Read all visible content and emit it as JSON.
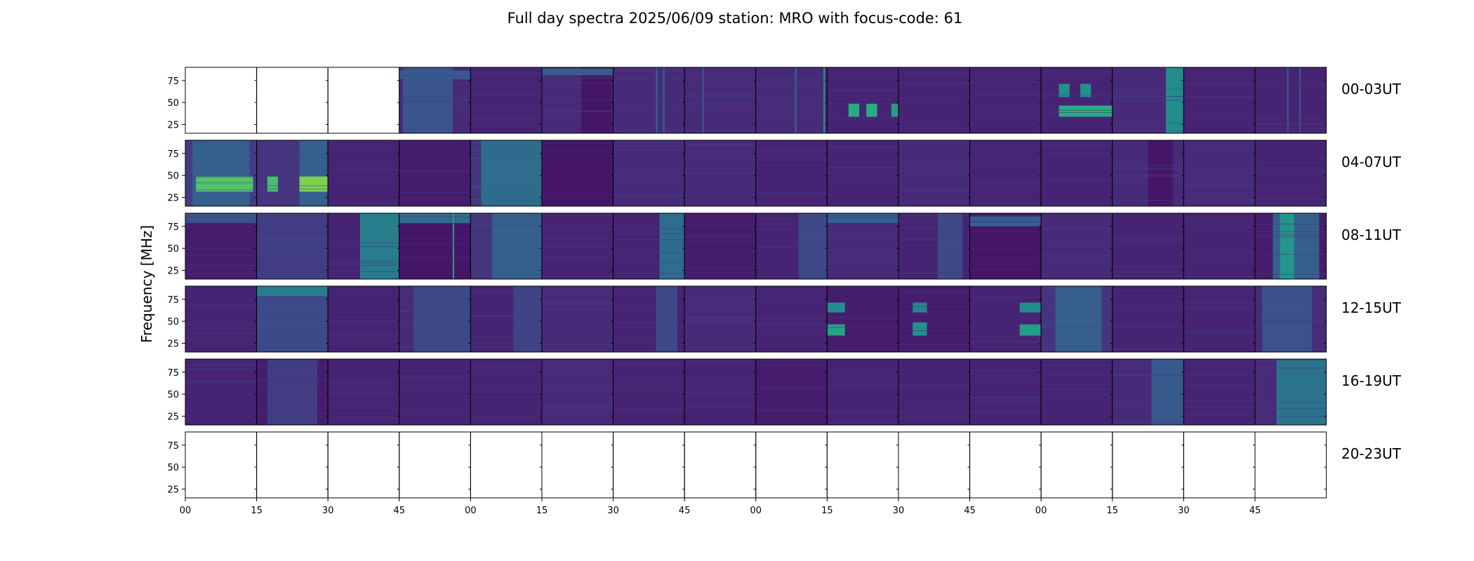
{
  "chart_data": {
    "type": "heatmap",
    "title": "Full day spectra 2025/06/09 station: MRO with focus-code: 61",
    "ylabel": "Frequency [MHz]",
    "y_ticks": [
      "25",
      "50",
      "75"
    ],
    "x_ticks": [
      "00",
      "15",
      "30",
      "45",
      "00",
      "15",
      "30",
      "45",
      "00",
      "15",
      "30",
      "45",
      "00",
      "15",
      "30",
      "45"
    ],
    "colormap": "viridis",
    "colormap_colors": [
      "#440154",
      "#472d7b",
      "#3b528b",
      "#2c728e",
      "#21918c",
      "#28ae80",
      "#5ec962",
      "#addc30",
      "#fde725"
    ],
    "rows": [
      {
        "label": "00-03UT",
        "panels": [
          {
            "empty": true
          },
          {
            "empty": true
          },
          {
            "empty": true
          },
          {
            "base": 0.12,
            "bands": [
              {
                "from": 0.82,
                "to": 0.95,
                "level": 0.28
              }
            ],
            "blocks": [
              {
                "x0": 0.05,
                "x1": 0.75,
                "level": 0.26
              }
            ]
          },
          {
            "base": 0.1
          },
          {
            "base": 0.12,
            "blocks": [
              {
                "x0": 0.55,
                "x1": 0.98,
                "level": 0.06
              }
            ],
            "bands": [
              {
                "from": 0.88,
                "to": 0.98,
                "level": 0.3
              }
            ]
          },
          {
            "base": 0.12,
            "lines": [
              {
                "x": 0.6,
                "level": 0.35
              },
              {
                "x": 0.7,
                "level": 0.35
              }
            ]
          },
          {
            "base": 0.12,
            "lines": [
              {
                "x": 0.25,
                "level": 0.3
              }
            ]
          },
          {
            "base": 0.12,
            "lines": [
              {
                "x": 0.55,
                "level": 0.35
              },
              {
                "x": 0.95,
                "level": 0.55
              }
            ]
          },
          {
            "base": 0.1,
            "spots": [
              {
                "x0": 0.3,
                "x1": 0.45,
                "y0": 0.25,
                "y1": 0.45,
                "level": 0.62
              },
              {
                "x0": 0.55,
                "x1": 0.7,
                "y0": 0.25,
                "y1": 0.45,
                "level": 0.62
              },
              {
                "x0": 0.9,
                "x1": 1.0,
                "y0": 0.25,
                "y1": 0.45,
                "level": 0.55
              }
            ]
          },
          {
            "base": 0.1
          },
          {
            "base": 0.1
          },
          {
            "base": 0.1,
            "spots": [
              {
                "x0": 0.25,
                "x1": 1.0,
                "y0": 0.25,
                "y1": 0.42,
                "level": 0.62
              },
              {
                "x0": 0.25,
                "x1": 0.4,
                "y0": 0.55,
                "y1": 0.75,
                "level": 0.5
              },
              {
                "x0": 0.55,
                "x1": 0.7,
                "y0": 0.55,
                "y1": 0.75,
                "level": 0.5
              }
            ]
          },
          {
            "base": 0.12,
            "blocks": [
              {
                "x0": 0.75,
                "x1": 1.0,
                "level": 0.48
              }
            ]
          },
          {
            "base": 0.1
          },
          {
            "base": 0.1,
            "lines": [
              {
                "x": 0.45,
                "level": 0.28
              },
              {
                "x": 0.62,
                "level": 0.28
              }
            ]
          }
        ]
      },
      {
        "label": "04-07UT",
        "panels": [
          {
            "base": 0.18,
            "blocks": [
              {
                "x0": 0.1,
                "x1": 0.9,
                "level": 0.3
              }
            ],
            "spots": [
              {
                "x0": 0.15,
                "x1": 0.95,
                "y0": 0.22,
                "y1": 0.45,
                "level": 0.72
              }
            ]
          },
          {
            "base": 0.15,
            "blocks": [
              {
                "x0": 0.6,
                "x1": 1.0,
                "level": 0.3
              }
            ],
            "spots": [
              {
                "x0": 0.15,
                "x1": 0.3,
                "y0": 0.22,
                "y1": 0.45,
                "level": 0.7
              },
              {
                "x0": 0.6,
                "x1": 1.0,
                "y0": 0.22,
                "y1": 0.45,
                "level": 0.8
              }
            ]
          },
          {
            "base": 0.1
          },
          {
            "base": 0.08
          },
          {
            "base": 0.25,
            "blocks": [
              {
                "x0": 0.0,
                "x1": 0.15,
                "level": 0.15
              },
              {
                "x0": 0.15,
                "x1": 1.0,
                "level": 0.35
              }
            ]
          },
          {
            "base": 0.06
          },
          {
            "base": 0.12
          },
          {
            "base": 0.12
          },
          {
            "base": 0.1
          },
          {
            "base": 0.1
          },
          {
            "base": 0.12
          },
          {
            "base": 0.1
          },
          {
            "base": 0.1
          },
          {
            "base": 0.12,
            "blocks": [
              {
                "x0": 0.5,
                "x1": 0.85,
                "level": 0.06
              }
            ]
          },
          {
            "base": 0.12
          },
          {
            "base": 0.1
          }
        ]
      },
      {
        "label": "08-11UT",
        "panels": [
          {
            "base": 0.08,
            "bands": [
              {
                "from": 0.85,
                "to": 1.0,
                "level": 0.25
              }
            ]
          },
          {
            "base": 0.18
          },
          {
            "base": 0.1,
            "blocks": [
              {
                "x0": 0.45,
                "x1": 1.0,
                "level": 0.42
              }
            ]
          },
          {
            "base": 0.06,
            "bands": [
              {
                "from": 0.85,
                "to": 1.0,
                "level": 0.35
              }
            ],
            "lines": [
              {
                "x": 0.75,
                "level": 0.55
              }
            ]
          },
          {
            "base": 0.15,
            "blocks": [
              {
                "x0": 0.3,
                "x1": 1.0,
                "level": 0.3
              }
            ]
          },
          {
            "base": 0.1
          },
          {
            "base": 0.1,
            "blocks": [
              {
                "x0": 0.65,
                "x1": 1.0,
                "level": 0.35
              }
            ]
          },
          {
            "base": 0.08
          },
          {
            "base": 0.1,
            "blocks": [
              {
                "x0": 0.6,
                "x1": 1.0,
                "level": 0.22
              }
            ]
          },
          {
            "base": 0.12,
            "bands": [
              {
                "from": 0.85,
                "to": 1.0,
                "level": 0.3
              }
            ]
          },
          {
            "base": 0.1,
            "blocks": [
              {
                "x0": 0.55,
                "x1": 0.9,
                "level": 0.22
              }
            ]
          },
          {
            "base": 0.06,
            "bands": [
              {
                "from": 0.8,
                "to": 0.95,
                "level": 0.3
              }
            ]
          },
          {
            "base": 0.12
          },
          {
            "base": 0.1
          },
          {
            "base": 0.1
          },
          {
            "base": 0.08,
            "blocks": [
              {
                "x0": 0.25,
                "x1": 0.9,
                "level": 0.3
              },
              {
                "x0": 0.35,
                "x1": 0.55,
                "level": 0.52
              }
            ]
          }
        ]
      },
      {
        "label": "12-15UT",
        "panels": [
          {
            "base": 0.1
          },
          {
            "base": 0.22,
            "bands": [
              {
                "from": 0.85,
                "to": 1.0,
                "level": 0.42
              }
            ]
          },
          {
            "base": 0.1
          },
          {
            "base": 0.12,
            "blocks": [
              {
                "x0": 0.2,
                "x1": 1.0,
                "level": 0.22
              }
            ]
          },
          {
            "base": 0.1,
            "blocks": [
              {
                "x0": 0.6,
                "x1": 1.0,
                "level": 0.2
              }
            ]
          },
          {
            "base": 0.12
          },
          {
            "base": 0.1,
            "blocks": [
              {
                "x0": 0.6,
                "x1": 0.9,
                "level": 0.22
              }
            ]
          },
          {
            "base": 0.12
          },
          {
            "base": 0.1
          },
          {
            "base": 0.08,
            "spots": [
              {
                "x0": 0.0,
                "x1": 0.25,
                "y0": 0.25,
                "y1": 0.42,
                "level": 0.58
              },
              {
                "x0": 0.0,
                "x1": 0.25,
                "y0": 0.6,
                "y1": 0.75,
                "level": 0.48
              }
            ]
          },
          {
            "base": 0.08,
            "spots": [
              {
                "x0": 0.2,
                "x1": 0.4,
                "y0": 0.25,
                "y1": 0.45,
                "level": 0.5
              },
              {
                "x0": 0.2,
                "x1": 0.4,
                "y0": 0.6,
                "y1": 0.75,
                "level": 0.45
              }
            ]
          },
          {
            "base": 0.1,
            "spots": [
              {
                "x0": 0.7,
                "x1": 1.0,
                "y0": 0.25,
                "y1": 0.42,
                "level": 0.55
              },
              {
                "x0": 0.7,
                "x1": 1.0,
                "y0": 0.6,
                "y1": 0.75,
                "level": 0.48
              }
            ]
          },
          {
            "base": 0.15,
            "blocks": [
              {
                "x0": 0.2,
                "x1": 0.85,
                "level": 0.3
              }
            ]
          },
          {
            "base": 0.1
          },
          {
            "base": 0.1
          },
          {
            "base": 0.12,
            "blocks": [
              {
                "x0": 0.1,
                "x1": 0.8,
                "level": 0.25
              }
            ]
          }
        ]
      },
      {
        "label": "16-19UT",
        "panels": [
          {
            "base": 0.1
          },
          {
            "base": 0.08,
            "blocks": [
              {
                "x0": 0.15,
                "x1": 0.85,
                "level": 0.18
              }
            ]
          },
          {
            "base": 0.1
          },
          {
            "base": 0.1
          },
          {
            "base": 0.1
          },
          {
            "base": 0.12
          },
          {
            "base": 0.1
          },
          {
            "base": 0.1
          },
          {
            "base": 0.08
          },
          {
            "base": 0.1
          },
          {
            "base": 0.1
          },
          {
            "base": 0.1
          },
          {
            "base": 0.1
          },
          {
            "base": 0.12,
            "blocks": [
              {
                "x0": 0.55,
                "x1": 1.0,
                "level": 0.28
              }
            ]
          },
          {
            "base": 0.1
          },
          {
            "base": 0.12,
            "blocks": [
              {
                "x0": 0.3,
                "x1": 1.0,
                "level": 0.38
              }
            ]
          }
        ]
      },
      {
        "label": "20-23UT",
        "panels": [
          {
            "empty": true
          },
          {
            "empty": true
          },
          {
            "empty": true
          },
          {
            "empty": true
          },
          {
            "empty": true
          },
          {
            "empty": true
          },
          {
            "empty": true
          },
          {
            "empty": true
          },
          {
            "empty": true
          },
          {
            "empty": true
          },
          {
            "empty": true
          },
          {
            "empty": true
          },
          {
            "empty": true
          },
          {
            "empty": true
          },
          {
            "empty": true
          },
          {
            "empty": true
          }
        ]
      }
    ]
  }
}
